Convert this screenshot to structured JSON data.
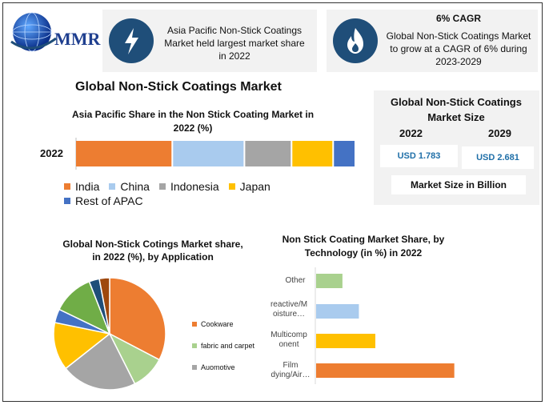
{
  "logo": {
    "text": "MMR"
  },
  "cards": {
    "share": {
      "text": "Asia Pacific Non-Stick Coatings Market held largest market share in 2022",
      "icon": "lightning-icon"
    },
    "cagr": {
      "title": "6% CAGR",
      "text": "Global Non-Stick Coatings Market to grow at a CAGR of 6% during 2023-2029",
      "icon": "flame-icon"
    }
  },
  "main_title": "Global Non-Stick Coatings Market",
  "market_size": {
    "title": "Global Non-Stick Coatings Market Size",
    "year_a": "2022",
    "year_b": "2029",
    "value_a": "USD 1.783",
    "value_b": "USD 2.681",
    "footer": "Market Size in Billion"
  },
  "colors": {
    "india": "#ed7d31",
    "china": "#a9cbee",
    "indonesia": "#a5a5a5",
    "japan": "#ffc000",
    "rest_apac": "#4472c4",
    "dark_blue": "#1f4e79",
    "green": "#a9d18e",
    "mid_green": "#70ad47"
  },
  "chart_data": [
    {
      "type": "bar",
      "orientation": "horizontal-stacked",
      "title": "Asia Pacific Share in the Non Stick Coating Market in 2022 (%)",
      "categories": [
        "2022"
      ],
      "series": [
        {
          "name": "India",
          "values": [
            35
          ]
        },
        {
          "name": "China",
          "values": [
            26
          ]
        },
        {
          "name": "Indonesia",
          "values": [
            17
          ]
        },
        {
          "name": "Japan",
          "values": [
            15
          ]
        },
        {
          "name": "Rest of APAC",
          "values": [
            8
          ]
        }
      ],
      "legend": "bottom"
    },
    {
      "type": "pie",
      "title": "Global Non-Stick Cotings Market share, in 2022 (%), by Application",
      "labels": [
        "Cookware",
        "fabric and carpet",
        "Auomotive",
        "",
        "",
        "",
        "",
        ""
      ],
      "values": [
        33,
        10,
        22,
        14,
        4,
        12,
        3,
        3
      ],
      "legend": "right"
    },
    {
      "type": "bar",
      "orientation": "horizontal",
      "title": "Non Stick Coating Market Share, by Technology (in %) in 2022",
      "categories": [
        "Other",
        "reactive/M oisture…",
        "Multicomp onent",
        "Film dying/Air…"
      ],
      "values": [
        8,
        13,
        18,
        42
      ],
      "xlim": [
        0,
        45
      ]
    }
  ]
}
